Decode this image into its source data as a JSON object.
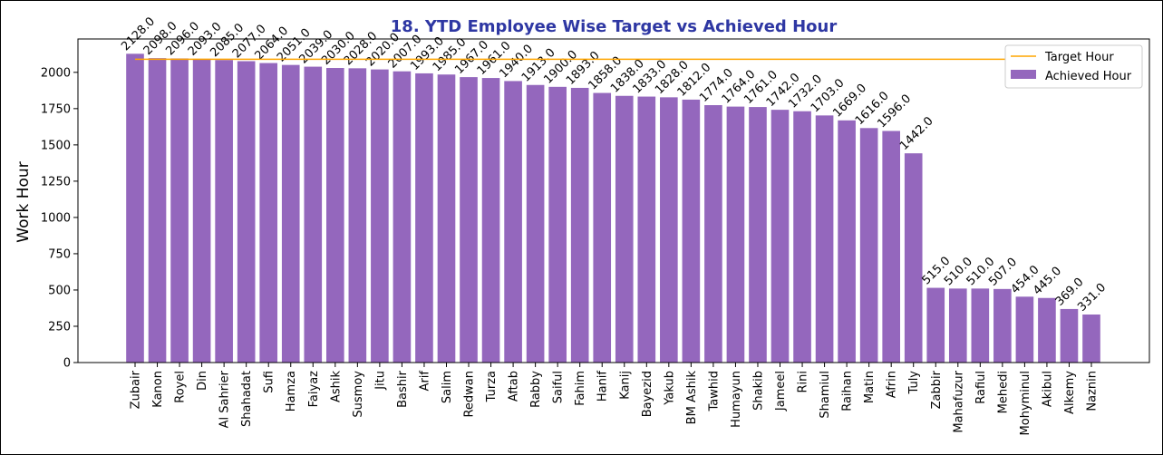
{
  "chart_data": {
    "type": "bar",
    "title": "18. YTD Employee Wise Target vs Achieved Hour",
    "xlabel": "",
    "ylabel": "Work Hour",
    "ylim": [
      0,
      2230
    ],
    "yticks": [
      0,
      250,
      500,
      750,
      1000,
      1250,
      1500,
      1750,
      2000
    ],
    "grid": false,
    "legend_position": "top-right",
    "categories": [
      "Zubair",
      "Kanon",
      "Royel",
      "Din",
      "Al Sahrier",
      "Shahadat",
      "Sufi",
      "Hamza",
      "Faiyaz",
      "Ashik",
      "Susmoy",
      "Jitu",
      "Bashir",
      "Arif",
      "Salim",
      "Redwan",
      "Turza",
      "Aftab",
      "Rabby",
      "Saiful",
      "Fahim",
      "Hanif",
      "Kanij",
      "Bayezid",
      "Yakub",
      "BM Ashik",
      "Tawhid",
      "Humayun",
      "Shakib",
      "Jameel",
      "Rini",
      "Shamiul",
      "Raihan",
      "Matin",
      "Afrin",
      "Tuly",
      "Zabbir",
      "Mahafuzur",
      "Rafiul",
      "Mehedi",
      "Mohyminul",
      "Akibul",
      "Alkemy",
      "Naznin"
    ],
    "series": [
      {
        "name": "Achieved Hour",
        "type": "bar",
        "color": "#9467bd",
        "values": [
          2128.0,
          2098.0,
          2096.0,
          2093.0,
          2085.0,
          2077.0,
          2064.0,
          2051.0,
          2039.0,
          2030.0,
          2028.0,
          2020.0,
          2007.0,
          1993.0,
          1985.0,
          1967.0,
          1961.0,
          1940.0,
          1913.0,
          1900.0,
          1893.0,
          1858.0,
          1838.0,
          1833.0,
          1828.0,
          1812.0,
          1774.0,
          1764.0,
          1761.0,
          1742.0,
          1732.0,
          1703.0,
          1669.0,
          1616.0,
          1596.0,
          1442.0,
          515.0,
          510.0,
          510.0,
          507.0,
          454.0,
          445.0,
          369.0,
          331.0
        ],
        "labels": [
          "2128.0",
          "2098.0",
          "2096.0",
          "2093.0",
          "2085.0",
          "2077.0",
          "2064.0",
          "2051.0",
          "2039.0",
          "2030.0",
          "2028.0",
          "2020.0",
          "2007.0",
          "1993.0",
          "1985.0",
          "1967.0",
          "1961.0",
          "1940.0",
          "1913.0",
          "1900.0",
          "1893.0",
          "1858.0",
          "1838.0",
          "1833.0",
          "1828.0",
          "1812.0",
          "1774.0",
          "1764.0",
          "1761.0",
          "1742.0",
          "1732.0",
          "1703.0",
          "1669.0",
          "1616.0",
          "1596.0",
          "1442.0",
          "515.0",
          "510.0",
          "510.0",
          "507.0",
          "454.0",
          "445.0",
          "369.0",
          "331.0"
        ]
      },
      {
        "name": "Target Hour",
        "type": "line",
        "color": "#ffa500",
        "value": 2090,
        "x_range": [
          "Zubair",
          "Alkemy"
        ]
      }
    ]
  }
}
